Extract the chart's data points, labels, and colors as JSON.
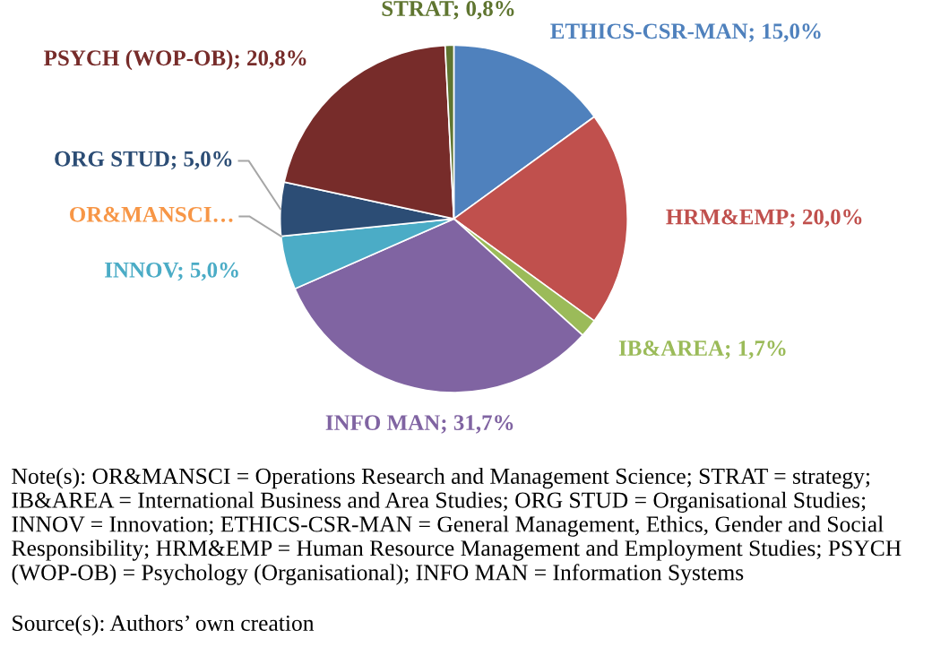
{
  "chart_data": {
    "type": "pie",
    "categories": [
      "ETHICS-CSR-MAN",
      "HRM&EMP",
      "IB&AREA",
      "INFO MAN",
      "INNOV",
      "OR&MANSCI…",
      "ORG STUD",
      "PSYCH (WOP-OB)",
      "STRAT"
    ],
    "values": [
      15.0,
      20.0,
      1.7,
      31.7,
      5.0,
      0,
      5.0,
      20.8,
      0.8
    ],
    "colors": [
      "#4f81bd",
      "#c0504d",
      "#9bbb59",
      "#8064a2",
      "#4bacc6",
      "#f79646",
      "#2c4d75",
      "#772c2a",
      "#5f7530"
    ],
    "value_labels": [
      "15,0%",
      "20,0%",
      "1,7%",
      "31,7%",
      "5,0%",
      null,
      "5,0%",
      "20,8%",
      "0,8%"
    ],
    "annotations": [
      "Note(s): OR&MANSCI = Operations Research and Management Science; STRAT = strategy; IB&AREA = International Business and Area Studies; ORG STUD = Organisational Studies; INNOV = Innovation; ETHICS-CSR-MAN = General Management, Ethics, Gender and Social Responsibility; HRM&EMP = Human Resource Management and Employment Studies; PSYCH (WOP-OB) = Psychology (Organisational); INFO MAN = Information Systems",
      "Source(s): Authors’ own creation"
    ]
  }
}
